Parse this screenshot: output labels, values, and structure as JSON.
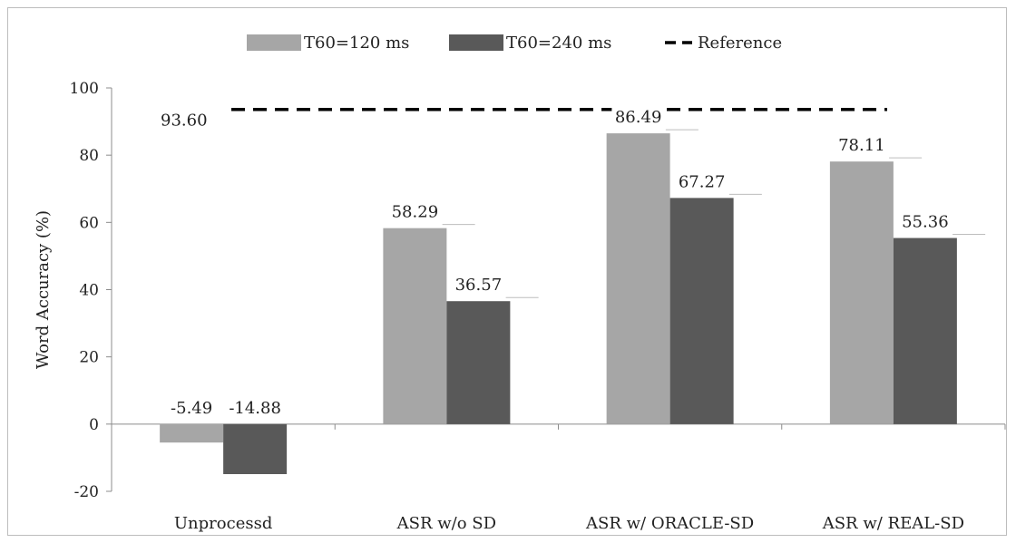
{
  "chart_data": {
    "type": "bar",
    "categories": [
      "Unprocessd",
      "ASR w/o SD",
      "ASR w/ ORACLE-SD",
      "ASR w/ REAL-SD"
    ],
    "series": [
      {
        "name": "T60=120 ms",
        "values": [
          -5.49,
          58.29,
          86.49,
          78.11
        ],
        "labels": [
          "-5.49",
          "58.29",
          "86.49",
          "78.11"
        ],
        "color": "#a6a6a6"
      },
      {
        "name": "T60=240 ms",
        "values": [
          -14.88,
          36.57,
          67.27,
          55.36
        ],
        "labels": [
          "-14.88",
          "36.57",
          "67.27",
          "55.36"
        ],
        "color": "#595959"
      }
    ],
    "reference": {
      "name": "Reference",
      "value": 93.6,
      "label": "93.60",
      "style": "dashed"
    },
    "ylabel": "Word Accuracy (%)",
    "xlabel": "",
    "ylim": [
      -20,
      100
    ],
    "yticks": [
      -20,
      0,
      20,
      40,
      60,
      80,
      100
    ],
    "ytick_labels": [
      "-20",
      "0",
      "20",
      "40",
      "60",
      "80",
      "100"
    ],
    "grid": false,
    "legend_position": "top-center"
  }
}
